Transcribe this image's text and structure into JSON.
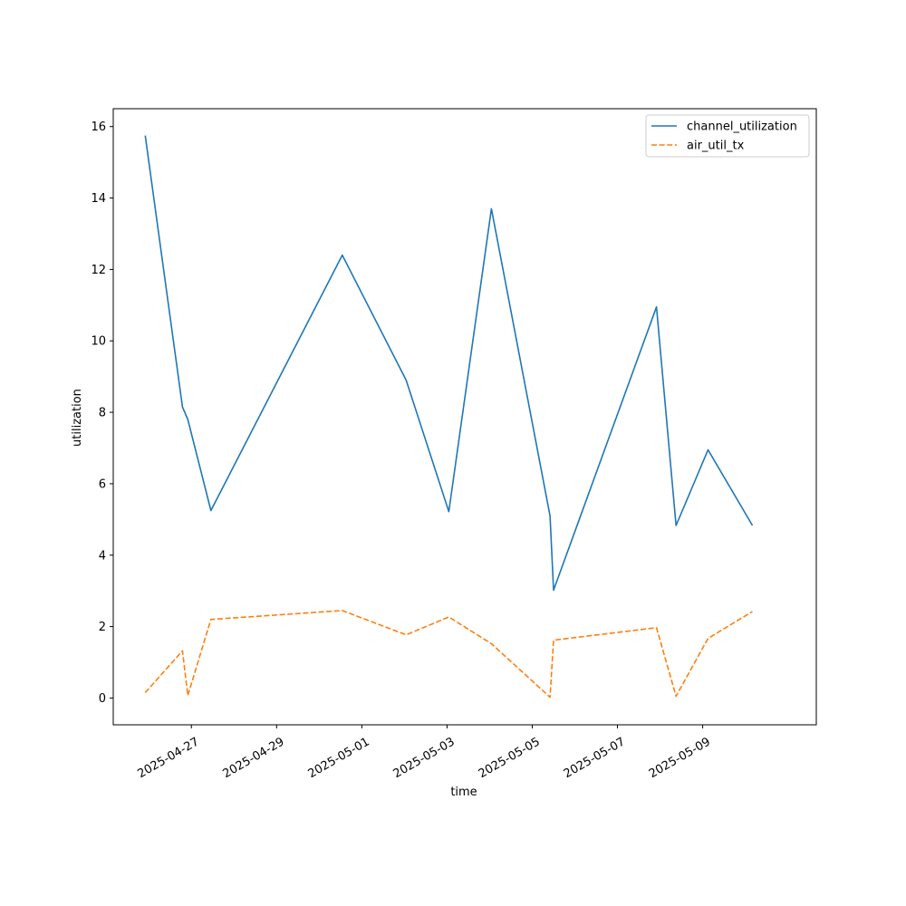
{
  "chart_data": {
    "type": "line",
    "title": "",
    "xlabel": "time",
    "ylabel": "utilization",
    "xlim": [
      "2025-04-25T04:00",
      "2025-05-11T16:00"
    ],
    "ylim": [
      -0.75,
      16.5
    ],
    "x_ticks": [
      "2025-04-27",
      "2025-04-29",
      "2025-05-01",
      "2025-05-03",
      "2025-05-05",
      "2025-05-07",
      "2025-05-09"
    ],
    "y_ticks": [
      "0",
      "2",
      "4",
      "6",
      "8",
      "10",
      "12",
      "14",
      "16"
    ],
    "y_tick_values": [
      0,
      2,
      4,
      6,
      8,
      10,
      12,
      14,
      16
    ],
    "grid": false,
    "legend_position": "top-right",
    "colors": {
      "channel_utilization": "#1f77b4",
      "air_util_tx": "#ff7f0e"
    },
    "series": [
      {
        "name": "channel_utilization",
        "style": "solid",
        "points": [
          [
            "2025-04-25T22:00",
            15.75
          ],
          [
            "2025-04-26T19:00",
            8.15
          ],
          [
            "2025-04-26T22:00",
            7.8
          ],
          [
            "2025-04-27T11:00",
            5.25
          ],
          [
            "2025-04-30T13:00",
            12.4
          ],
          [
            "2025-05-02T01:00",
            8.9
          ],
          [
            "2025-05-03T01:00",
            5.22
          ],
          [
            "2025-05-04T01:00",
            13.7
          ],
          [
            "2025-05-05T10:00",
            5.1
          ],
          [
            "2025-05-05T12:00",
            3.02
          ],
          [
            "2025-05-07T22:00",
            10.95
          ],
          [
            "2025-05-08T09:00",
            4.83
          ],
          [
            "2025-05-09T03:00",
            6.95
          ],
          [
            "2025-05-10T04:00",
            4.83
          ]
        ]
      },
      {
        "name": "air_util_tx",
        "style": "dashed",
        "points": [
          [
            "2025-04-25T22:00",
            0.15
          ],
          [
            "2025-04-26T19:00",
            1.32
          ],
          [
            "2025-04-26T22:00",
            0.07
          ],
          [
            "2025-04-27T11:00",
            2.2
          ],
          [
            "2025-04-30T13:00",
            2.45
          ],
          [
            "2025-05-02T01:00",
            1.77
          ],
          [
            "2025-05-03T01:00",
            2.27
          ],
          [
            "2025-05-04T01:00",
            1.52
          ],
          [
            "2025-05-05T10:00",
            0.02
          ],
          [
            "2025-05-05T12:00",
            1.62
          ],
          [
            "2025-05-07T22:00",
            1.97
          ],
          [
            "2025-05-08T09:00",
            0.05
          ],
          [
            "2025-05-09T03:00",
            1.67
          ],
          [
            "2025-05-10T04:00",
            2.42
          ]
        ]
      }
    ]
  }
}
